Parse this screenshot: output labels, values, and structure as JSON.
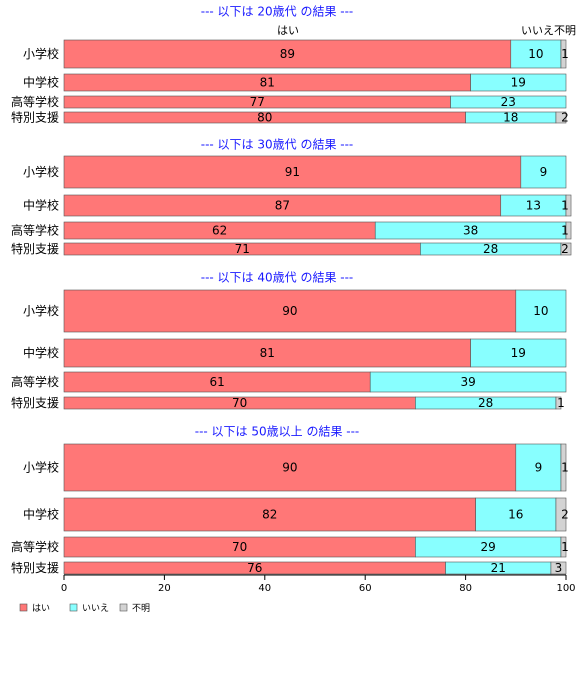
{
  "chart_data": {
    "type": "bar",
    "orientation": "horizontal",
    "stacked": true,
    "xlim": [
      0,
      100
    ],
    "x_ticks": [
      "0",
      "20",
      "40",
      "60",
      "80",
      "100"
    ],
    "grid": false,
    "legend_placement": "bottom-left",
    "top_labels": {
      "yes": "はい",
      "no_unknown": "いいえ不明"
    },
    "series": [
      {
        "name": "はい",
        "color": "#ff7777"
      },
      {
        "name": "いいえ",
        "color": "#88ffff"
      },
      {
        "name": "不明",
        "color": "#d3d3d3"
      }
    ],
    "groups": [
      {
        "title": "--- 以下は 20歳代 の結果 ---",
        "rows": [
          {
            "category": "小学校",
            "values": [
              89,
              10,
              1
            ]
          },
          {
            "category": "中学校",
            "values": [
              81,
              19,
              0
            ]
          },
          {
            "category": "高等学校",
            "values": [
              77,
              23,
              0
            ]
          },
          {
            "category": "特別支援",
            "values": [
              80,
              18,
              2
            ]
          }
        ]
      },
      {
        "title": "--- 以下は 30歳代 の結果 ---",
        "rows": [
          {
            "category": "小学校",
            "values": [
              91,
              9,
              0
            ]
          },
          {
            "category": "中学校",
            "values": [
              87,
              13,
              1
            ]
          },
          {
            "category": "高等学校",
            "values": [
              62,
              38,
              1
            ]
          },
          {
            "category": "特別支援",
            "values": [
              71,
              28,
              2
            ]
          }
        ]
      },
      {
        "title": "--- 以下は 40歳代 の結果 ---",
        "rows": [
          {
            "category": "小学校",
            "values": [
              90,
              10,
              0
            ]
          },
          {
            "category": "中学校",
            "values": [
              81,
              19,
              0
            ]
          },
          {
            "category": "高等学校",
            "values": [
              61,
              39,
              0
            ]
          },
          {
            "category": "特別支援",
            "values": [
              70,
              28,
              1
            ]
          }
        ]
      },
      {
        "title": "--- 以下は 50歳以上 の結果 ---",
        "rows": [
          {
            "category": "小学校",
            "values": [
              90,
              9,
              1
            ]
          },
          {
            "category": "中学校",
            "values": [
              82,
              16,
              2
            ]
          },
          {
            "category": "高等学校",
            "values": [
              70,
              29,
              1
            ]
          },
          {
            "category": "特別支援",
            "values": [
              76,
              21,
              3
            ]
          }
        ]
      }
    ]
  }
}
